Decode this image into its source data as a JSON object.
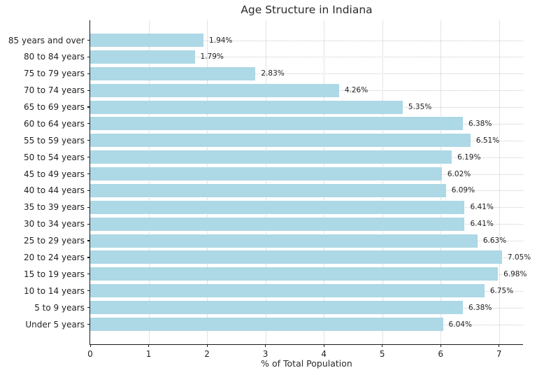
{
  "chart_data": {
    "type": "bar",
    "orientation": "horizontal",
    "title": "Age Structure in Indiana",
    "xlabel": "% of Total Population",
    "ylabel": "",
    "categories": [
      "85 years and over",
      "80 to 84 years",
      "75 to 79 years",
      "70 to 74 years",
      "65 to 69 years",
      "60 to 64 years",
      "55 to 59 years",
      "50 to 54 years",
      "45 to 49 years",
      "40 to 44 years",
      "35 to 39 years",
      "30 to 34 years",
      "25 to 29 years",
      "20 to 24 years",
      "15 to 19 years",
      "10 to 14 years",
      "5 to 9 years",
      "Under 5 years"
    ],
    "values": [
      1.94,
      1.79,
      2.83,
      4.26,
      5.35,
      6.38,
      6.51,
      6.19,
      6.02,
      6.09,
      6.41,
      6.41,
      6.63,
      7.05,
      6.98,
      6.75,
      6.38,
      6.04
    ],
    "bar_labels": [
      "1.94%",
      "1.79%",
      "2.83%",
      "4.26%",
      "5.35%",
      "6.38%",
      "6.51%",
      "6.19%",
      "6.02%",
      "6.09%",
      "6.41%",
      "6.41%",
      "6.63%",
      "7.05%",
      "6.98%",
      "6.75%",
      "6.38%",
      "6.04%"
    ],
    "x_ticks": [
      0,
      1,
      2,
      3,
      4,
      5,
      6,
      7
    ],
    "xlim": [
      0,
      7.41
    ],
    "grid": "dotted, both axes",
    "legend": "none",
    "colors": {
      "bar": "#ADD8E6",
      "grid": "#c9c9c9",
      "axis": "#1a1a1a",
      "text": "#1f1f1f"
    }
  }
}
